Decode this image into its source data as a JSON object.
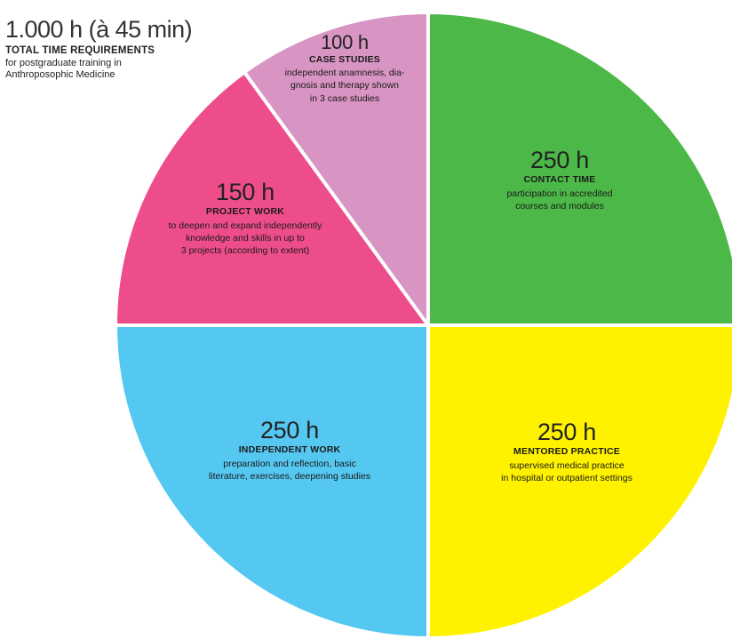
{
  "header": {
    "total": "1.000 h (à 45 min)",
    "title": "TOTAL TIME REQUIREMENTS",
    "description_line1": "for postgraduate training in",
    "description_line2": "Anthroposophic Medicine"
  },
  "chart_data": {
    "type": "pie",
    "title": "TOTAL TIME REQUIREMENTS",
    "unit": "h",
    "total": 1000,
    "slices": [
      {
        "id": "contact",
        "value": 250,
        "hours_label": "250 h",
        "name": "CONTACT TIME",
        "desc_line1": "participation in accredited",
        "desc_line2": "courses and modules",
        "color": "#4cb848"
      },
      {
        "id": "mentored",
        "value": 250,
        "hours_label": "250 h",
        "name": "MENTORED PRACTICE",
        "desc_line1": "supervised medical practice",
        "desc_line2": "in hospital or outpatient settings",
        "color": "#fff200"
      },
      {
        "id": "independent",
        "value": 250,
        "hours_label": "250 h",
        "name": "INDEPENDENT WORK",
        "desc_line1": "preparation and reflection, basic",
        "desc_line2": "literature, exercises, deepening studies",
        "color": "#55c8f2"
      },
      {
        "id": "project",
        "value": 150,
        "hours_label": "150 h",
        "name": "PROJECT WORK",
        "desc_line1": "to deepen and expand independently",
        "desc_line2": "knowledge and skills in up to",
        "desc_line3": "3 projects (according to extent)",
        "color": "#ee4d8b"
      },
      {
        "id": "case",
        "value": 100,
        "hours_label": "100 h",
        "name": "CASE STUDIES",
        "desc_line1": "independent anamnesis, dia-",
        "desc_line2": "gnosis and therapy shown",
        "desc_line3": "in 3 case studies",
        "color": "#d894c2"
      }
    ]
  }
}
